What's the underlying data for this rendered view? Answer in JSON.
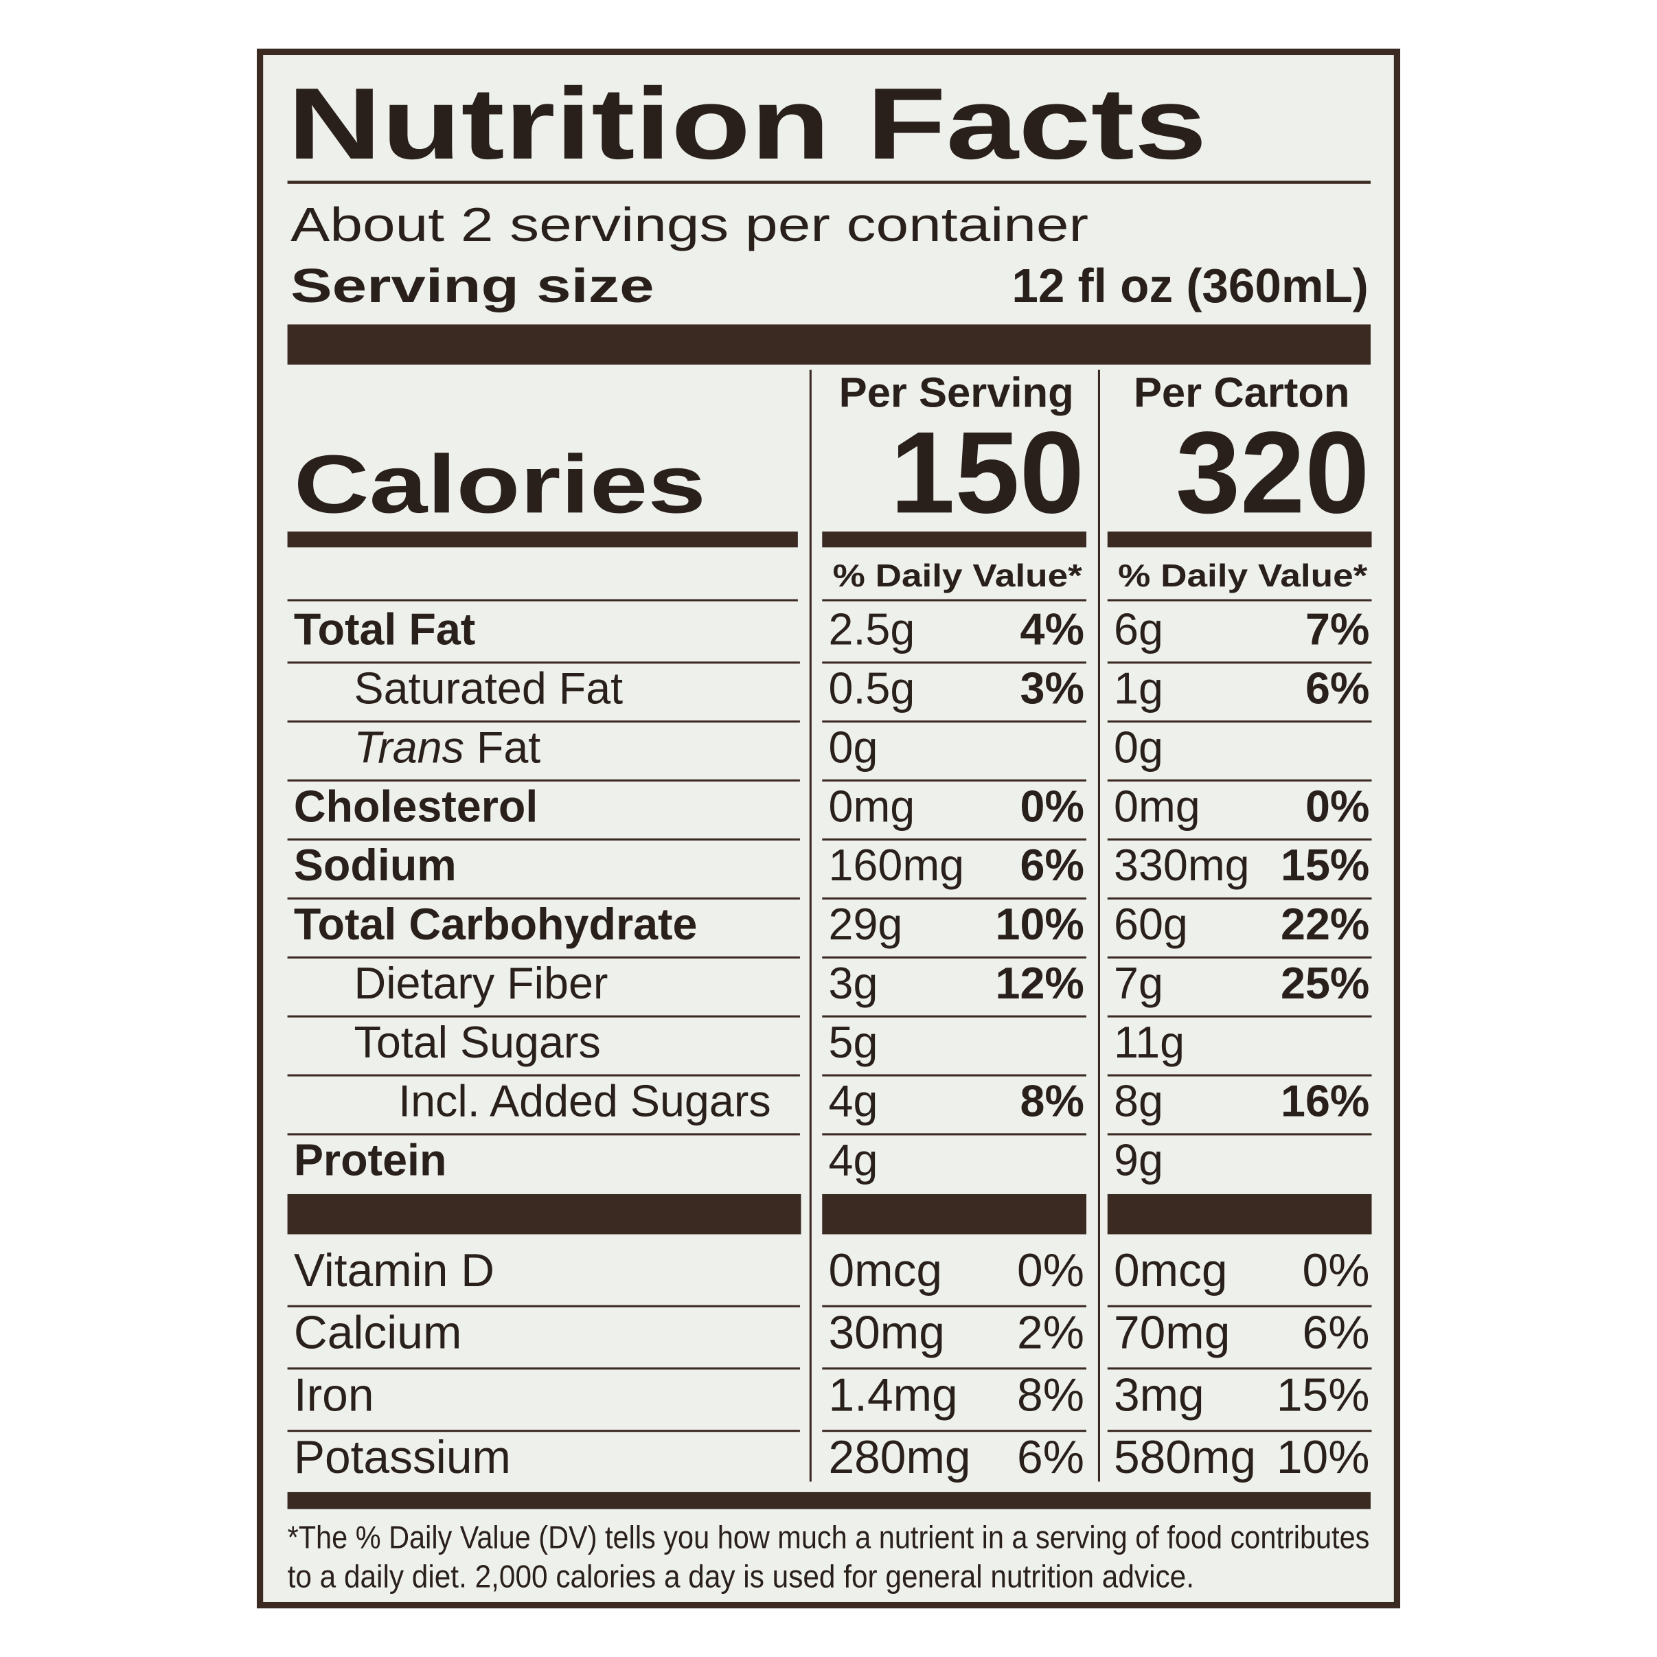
{
  "title": "Nutrition Facts",
  "servings_per_container": "About 2 servings per container",
  "serving_size_label": "Serving size",
  "serving_size": "12 fl oz (360mL)",
  "calories_label": "Calories",
  "columns": [
    {
      "header": "Per Serving",
      "calories": 150,
      "dv_header": "% Daily Value*"
    },
    {
      "header": "Per Carton",
      "calories": 320,
      "dv_header": "% Daily Value*"
    }
  ],
  "nutrients": [
    {
      "name": "Total Fat",
      "per_serving": {
        "amount": "2.5g",
        "dv": "4%"
      },
      "per_carton": {
        "amount": "6g",
        "dv": "7%"
      }
    },
    {
      "name": "Saturated Fat",
      "per_serving": {
        "amount": "0.5g",
        "dv": "3%"
      },
      "per_carton": {
        "amount": "1g",
        "dv": "6%"
      }
    },
    {
      "name": "Trans Fat",
      "per_serving": {
        "amount": "0g"
      },
      "per_carton": {
        "amount": "0g"
      }
    },
    {
      "name": "Cholesterol",
      "per_serving": {
        "amount": "0mg",
        "dv": "0%"
      },
      "per_carton": {
        "amount": "0mg",
        "dv": "0%"
      }
    },
    {
      "name": "Sodium",
      "per_serving": {
        "amount": "160mg",
        "dv": "6%"
      },
      "per_carton": {
        "amount": "330mg",
        "dv": "15%"
      }
    },
    {
      "name": "Total Carbohydrate",
      "per_serving": {
        "amount": "29g",
        "dv": "10%"
      },
      "per_carton": {
        "amount": "60g",
        "dv": "22%"
      }
    },
    {
      "name": "Dietary Fiber",
      "per_serving": {
        "amount": "3g",
        "dv": "12%"
      },
      "per_carton": {
        "amount": "7g",
        "dv": "25%"
      }
    },
    {
      "name": "Total Sugars",
      "per_serving": {
        "amount": "5g"
      },
      "per_carton": {
        "amount": "11g"
      }
    },
    {
      "name": "Incl. Added Sugars",
      "per_serving": {
        "amount": "4g",
        "dv": "8%"
      },
      "per_carton": {
        "amount": "8g",
        "dv": "16%"
      }
    },
    {
      "name": "Protein",
      "per_serving": {
        "amount": "4g"
      },
      "per_carton": {
        "amount": "9g"
      }
    }
  ],
  "vitamins": [
    {
      "name": "Vitamin D",
      "per_serving": {
        "amount": "0mcg",
        "dv": "0%"
      },
      "per_carton": {
        "amount": "0mcg",
        "dv": "0%"
      }
    },
    {
      "name": "Calcium",
      "per_serving": {
        "amount": "30mg",
        "dv": "2%"
      },
      "per_carton": {
        "amount": "70mg",
        "dv": "6%"
      }
    },
    {
      "name": "Iron",
      "per_serving": {
        "amount": "1.4mg",
        "dv": "8%"
      },
      "per_carton": {
        "amount": "3mg",
        "dv": "15%"
      }
    },
    {
      "name": "Potassium",
      "per_serving": {
        "amount": "280mg",
        "dv": "6%"
      },
      "per_carton": {
        "amount": "580mg",
        "dv": "10%"
      }
    }
  ],
  "footnote": [
    "*The % Daily Value (DV) tells you how much a nutrient in a serving of food contributes",
    "to a daily diet. 2,000 calories a day is used for general nutrition advice."
  ]
}
